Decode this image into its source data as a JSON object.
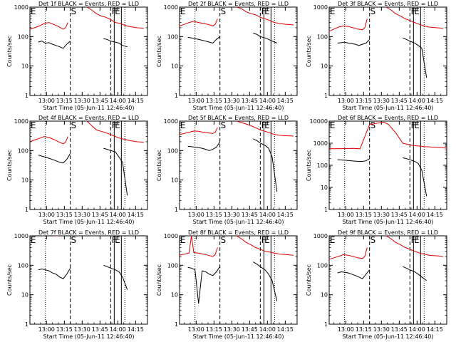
{
  "figure": {
    "x_axis_title": "Start Time (05-Jun-11 12:46:40)",
    "y_axis_title": "Counts/sec",
    "x_tick_labels": [
      "13:00",
      "13:15",
      "13:30",
      "13:45",
      "14:00",
      "14:15"
    ],
    "y_tick_labels": [
      "1",
      "10",
      "100",
      "1000"
    ],
    "y_tick_labels_big": [
      "1",
      "10",
      "100",
      "1000",
      "10000"
    ],
    "markers": [
      "E",
      "S",
      "F",
      "E"
    ]
  },
  "chart_data": [
    {
      "type": "line",
      "title": "Det 1f BLACK = Events, RED = LLD",
      "xlabel": "Start Time (05-Jun-11 12:46:40)",
      "ylabel": "Counts/sec",
      "ylog": true,
      "ylim": [
        1,
        1000
      ],
      "xlim": [
        "12:46",
        "14:25"
      ],
      "dotted_lines": [
        "12:59",
        "14:06"
      ],
      "dashed_lines": [
        "13:20",
        "13:54"
      ],
      "solid_lines": [
        "13:57",
        "14:03"
      ],
      "series": [
        {
          "color": "#000000",
          "x_minutes": [
            7,
            10,
            13,
            16,
            19,
            22,
            25,
            28,
            31,
            34
          ],
          "values": [
            65,
            70,
            60,
            62,
            55,
            50,
            45,
            40,
            55,
            70
          ]
        },
        {
          "color": "#000000",
          "x_minutes": [
            62,
            65,
            68,
            72,
            75,
            78,
            82
          ],
          "values": [
            85,
            80,
            70,
            65,
            60,
            50,
            45
          ]
        },
        {
          "color": "#dd0000",
          "x_minutes": [
            0,
            4,
            8,
            12,
            16,
            20,
            24,
            28,
            30,
            32
          ],
          "values": [
            180,
            200,
            230,
            280,
            300,
            260,
            220,
            180,
            200,
            300
          ]
        },
        {
          "color": "#dd0000",
          "x_minutes": [
            48,
            52,
            56,
            60,
            64,
            68,
            72,
            76,
            80,
            84,
            90,
            96
          ],
          "values": [
            1000,
            800,
            600,
            500,
            450,
            380,
            300,
            280,
            240,
            220,
            200,
            190
          ]
        }
      ]
    },
    {
      "type": "line",
      "title": "Det 2f BLACK = Events, RED = LLD",
      "xlabel": "Start Time (05-Jun-11 12:46:40)",
      "ylabel": "Counts/sec",
      "ylog": true,
      "ylim": [
        1,
        1000
      ],
      "xlim": [
        "12:46",
        "14:25"
      ],
      "dotted_lines": [
        "12:59",
        "14:06"
      ],
      "dashed_lines": [
        "13:20",
        "13:54"
      ],
      "solid_lines": [
        "13:57",
        "14:03"
      ],
      "series": [
        {
          "color": "#000000",
          "x_minutes": [
            7,
            10,
            13,
            16,
            19,
            22,
            25,
            28,
            31,
            34
          ],
          "values": [
            95,
            90,
            85,
            80,
            75,
            70,
            65,
            60,
            80,
            100
          ]
        },
        {
          "color": "#000000",
          "x_minutes": [
            62,
            65,
            68,
            72,
            75,
            78,
            82
          ],
          "values": [
            130,
            120,
            100,
            90,
            80,
            70,
            60
          ]
        },
        {
          "color": "#dd0000",
          "x_minutes": [
            0,
            4,
            8,
            12,
            16,
            20,
            24,
            28,
            30,
            32
          ],
          "values": [
            230,
            260,
            300,
            330,
            300,
            280,
            260,
            230,
            260,
            400
          ]
        },
        {
          "color": "#dd0000",
          "x_minutes": [
            48,
            52,
            56,
            60,
            64,
            68,
            72,
            76,
            80,
            84,
            90,
            96
          ],
          "values": [
            1000,
            900,
            700,
            600,
            550,
            450,
            400,
            350,
            300,
            280,
            260,
            250
          ]
        }
      ]
    },
    {
      "type": "line",
      "title": "Det 3f BLACK = Events, RED = LLD",
      "xlabel": "Start Time (05-Jun-11 12:46:40)",
      "ylabel": "Counts/sec",
      "ylog": true,
      "ylim": [
        1,
        1000
      ],
      "xlim": [
        "12:46",
        "14:25"
      ],
      "dotted_lines": [
        "12:59",
        "14:06"
      ],
      "dashed_lines": [
        "13:20",
        "13:54"
      ],
      "solid_lines": [
        "13:57",
        "14:03"
      ],
      "series": [
        {
          "color": "#000000",
          "x_minutes": [
            7,
            10,
            13,
            16,
            19,
            22,
            25,
            28,
            31,
            34
          ],
          "values": [
            60,
            62,
            65,
            60,
            58,
            55,
            50,
            55,
            60,
            80
          ]
        },
        {
          "color": "#000000",
          "x_minutes": [
            62,
            65,
            68,
            72,
            75,
            78,
            82
          ],
          "values": [
            90,
            80,
            70,
            60,
            50,
            40,
            4
          ]
        },
        {
          "color": "#dd0000",
          "x_minutes": [
            0,
            4,
            8,
            12,
            16,
            20,
            24,
            28,
            30,
            32
          ],
          "values": [
            150,
            180,
            210,
            230,
            220,
            200,
            180,
            170,
            200,
            400
          ]
        },
        {
          "color": "#dd0000",
          "x_minutes": [
            48,
            52,
            56,
            60,
            64,
            68,
            72,
            76,
            80,
            84,
            90,
            96
          ],
          "values": [
            1000,
            800,
            600,
            500,
            400,
            350,
            300,
            260,
            230,
            210,
            200,
            190
          ]
        }
      ]
    },
    {
      "type": "line",
      "title": "Det 4f BLACK = Events, RED = LLD",
      "xlabel": "Start Time (05-Jun-11 12:46:40)",
      "ylabel": "Counts/sec",
      "ylog": true,
      "ylim": [
        1,
        1000
      ],
      "xlim": [
        "12:46",
        "14:25"
      ],
      "dotted_lines": [
        "12:59",
        "14:06"
      ],
      "dashed_lines": [
        "13:20",
        "13:54"
      ],
      "solid_lines": [
        "13:57",
        "14:03"
      ],
      "series": [
        {
          "color": "#000000",
          "x_minutes": [
            7,
            10,
            13,
            16,
            19,
            22,
            25,
            28,
            31,
            34
          ],
          "values": [
            70,
            65,
            60,
            55,
            50,
            45,
            40,
            38,
            50,
            80
          ]
        },
        {
          "color": "#000000",
          "x_minutes": [
            62,
            65,
            68,
            72,
            75,
            78,
            82
          ],
          "values": [
            120,
            110,
            100,
            90,
            60,
            40,
            3
          ]
        },
        {
          "color": "#dd0000",
          "x_minutes": [
            0,
            4,
            8,
            12,
            16,
            20,
            24,
            28,
            30,
            32
          ],
          "values": [
            200,
            230,
            260,
            300,
            280,
            240,
            200,
            170,
            190,
            300
          ]
        },
        {
          "color": "#dd0000",
          "x_minutes": [
            48,
            52,
            56,
            60,
            64,
            68,
            72,
            76,
            80,
            84,
            90,
            96
          ],
          "values": [
            1000,
            700,
            500,
            450,
            400,
            350,
            300,
            260,
            240,
            220,
            200,
            190
          ]
        }
      ]
    },
    {
      "type": "line",
      "title": "Det 5f BLACK = Events, RED = LLD",
      "xlabel": "Start Time (05-Jun-11 12:46:40)",
      "ylabel": "Counts/sec",
      "ylog": true,
      "ylim": [
        1,
        1000
      ],
      "xlim": [
        "12:46",
        "14:25"
      ],
      "dotted_lines": [
        "12:59",
        "14:06"
      ],
      "dashed_lines": [
        "13:20",
        "13:54"
      ],
      "solid_lines": [
        "13:57",
        "14:03"
      ],
      "series": [
        {
          "color": "#000000",
          "x_minutes": [
            7,
            10,
            13,
            16,
            19,
            22,
            25,
            28,
            31,
            34
          ],
          "values": [
            140,
            135,
            130,
            125,
            120,
            110,
            100,
            110,
            130,
            200
          ]
        },
        {
          "color": "#000000",
          "x_minutes": [
            62,
            65,
            68,
            72,
            75,
            78,
            82
          ],
          "values": [
            250,
            220,
            180,
            150,
            120,
            60,
            4
          ]
        },
        {
          "color": "#dd0000",
          "x_minutes": [
            0,
            4,
            8,
            12,
            16,
            20,
            24,
            28,
            30,
            32
          ],
          "values": [
            350,
            380,
            420,
            460,
            450,
            420,
            400,
            380,
            420,
            600
          ]
        },
        {
          "color": "#dd0000",
          "x_minutes": [
            48,
            52,
            56,
            60,
            64,
            68,
            72,
            76,
            80,
            84,
            90,
            96
          ],
          "values": [
            1000,
            900,
            800,
            700,
            600,
            500,
            450,
            400,
            350,
            330,
            320,
            310
          ]
        }
      ]
    },
    {
      "type": "line",
      "title": "Det 6f BLACK = Events, RED = LLD",
      "xlabel": "Start Time (05-Jun-11 12:46:40)",
      "ylabel": "Counts/sec",
      "ylog": true,
      "ylim": [
        1,
        10000
      ],
      "xlim": [
        "12:46",
        "14:25"
      ],
      "dotted_lines": [
        "12:59",
        "14:06"
      ],
      "dashed_lines": [
        "13:20",
        "13:54"
      ],
      "solid_lines": [
        "13:57",
        "14:03"
      ],
      "series": [
        {
          "color": "#000000",
          "x_minutes": [
            7,
            10,
            13,
            16,
            19,
            22,
            25,
            28,
            31,
            34
          ],
          "values": [
            180,
            175,
            170,
            165,
            160,
            155,
            150,
            150,
            160,
            200
          ]
        },
        {
          "color": "#000000",
          "x_minutes": [
            62,
            65,
            68,
            72,
            75,
            78,
            82
          ],
          "values": [
            220,
            200,
            180,
            150,
            120,
            60,
            4
          ]
        },
        {
          "color": "#dd0000",
          "x_minutes": [
            0,
            10,
            20,
            26,
            30,
            34,
            40,
            46,
            50,
            56,
            62,
            70,
            80,
            90,
            99
          ],
          "values": [
            560,
            570,
            580,
            560,
            2000,
            7000,
            8000,
            9000,
            7000,
            3000,
            1000,
            800,
            700,
            650,
            600
          ]
        }
      ]
    },
    {
      "type": "line",
      "title": "Det 7f BLACK = Events, RED = LLD",
      "xlabel": "Start Time (05-Jun-11 12:46:40)",
      "ylabel": "Counts/sec",
      "ylog": true,
      "ylim": [
        1,
        1000
      ],
      "xlim": [
        "12:46",
        "14:25"
      ],
      "dotted_lines": [
        "12:59",
        "14:06"
      ],
      "dashed_lines": [
        "13:20",
        "13:54"
      ],
      "solid_lines": [
        "13:57",
        "14:03"
      ],
      "series": [
        {
          "color": "#000000",
          "x_minutes": [
            7,
            10,
            13,
            16,
            19,
            22,
            25,
            28,
            31,
            34
          ],
          "values": [
            70,
            75,
            70,
            65,
            55,
            50,
            40,
            35,
            50,
            80
          ]
        },
        {
          "color": "#000000",
          "x_minutes": [
            62,
            65,
            68,
            72,
            75,
            78,
            82
          ],
          "values": [
            100,
            90,
            80,
            70,
            60,
            40,
            15
          ]
        },
        {
          "color": "#dd0000",
          "x_minutes": [
            20,
            24
          ],
          "values": [
            1000,
            1000
          ]
        }
      ]
    },
    {
      "type": "line",
      "title": "Det 8f BLACK = Events, RED = LLD",
      "xlabel": "Start Time (05-Jun-11 12:46:40)",
      "ylabel": "Counts/sec",
      "ylog": true,
      "ylim": [
        1,
        1000
      ],
      "xlim": [
        "12:46",
        "14:25"
      ],
      "dotted_lines": [
        "12:59",
        "14:06"
      ],
      "dashed_lines": [
        "13:20",
        "13:54"
      ],
      "solid_lines": [
        "13:57",
        "14:03"
      ],
      "series": [
        {
          "color": "#000000",
          "x_minutes": [
            7,
            10,
            13,
            16,
            19,
            22,
            25,
            28,
            31,
            34
          ],
          "values": [
            85,
            80,
            70,
            5,
            65,
            60,
            50,
            45,
            60,
            90
          ]
        },
        {
          "color": "#000000",
          "x_minutes": [
            62,
            65,
            68,
            72,
            75,
            78,
            82
          ],
          "values": [
            130,
            110,
            90,
            70,
            50,
            30,
            6
          ]
        },
        {
          "color": "#dd0000",
          "x_minutes": [
            0,
            4,
            8,
            10,
            12,
            16,
            20,
            24,
            28,
            30,
            32
          ],
          "values": [
            220,
            240,
            260,
            1000,
            270,
            260,
            240,
            220,
            200,
            230,
            400
          ]
        },
        {
          "color": "#dd0000",
          "x_minutes": [
            48,
            52,
            56,
            60,
            64,
            68,
            72,
            76,
            80,
            84,
            90,
            96
          ],
          "values": [
            1000,
            800,
            600,
            500,
            400,
            350,
            300,
            280,
            260,
            240,
            230,
            220
          ]
        }
      ]
    },
    {
      "type": "line",
      "title": "Det 9f BLACK = Events, RED = LLD",
      "xlabel": "Start Time (05-Jun-11 12:46:40)",
      "ylabel": "Counts/sec",
      "ylog": true,
      "ylim": [
        1,
        1000
      ],
      "xlim": [
        "12:46",
        "14:25"
      ],
      "dotted_lines": [
        "12:59",
        "14:06"
      ],
      "dashed_lines": [
        "13:20",
        "13:54"
      ],
      "solid_lines": [
        "13:57",
        "14:03"
      ],
      "series": [
        {
          "color": "#000000",
          "x_minutes": [
            7,
            10,
            13,
            16,
            19,
            22,
            25,
            28,
            31,
            34
          ],
          "values": [
            55,
            60,
            58,
            55,
            50,
            45,
            40,
            35,
            50,
            70
          ]
        },
        {
          "color": "#000000",
          "x_minutes": [
            62,
            65,
            68,
            72,
            75,
            78,
            82
          ],
          "values": [
            90,
            80,
            70,
            60,
            50,
            40,
            30
          ]
        },
        {
          "color": "#dd0000",
          "x_minutes": [
            0,
            4,
            8,
            12,
            16,
            20,
            24,
            28,
            30,
            32
          ],
          "values": [
            160,
            180,
            200,
            230,
            220,
            200,
            180,
            170,
            200,
            400
          ]
        },
        {
          "color": "#dd0000",
          "x_minutes": [
            48,
            52,
            56,
            60,
            64,
            68,
            72,
            76,
            80,
            84,
            90,
            96
          ],
          "values": [
            1000,
            800,
            600,
            500,
            400,
            350,
            300,
            260,
            240,
            220,
            210,
            200
          ]
        }
      ]
    }
  ]
}
